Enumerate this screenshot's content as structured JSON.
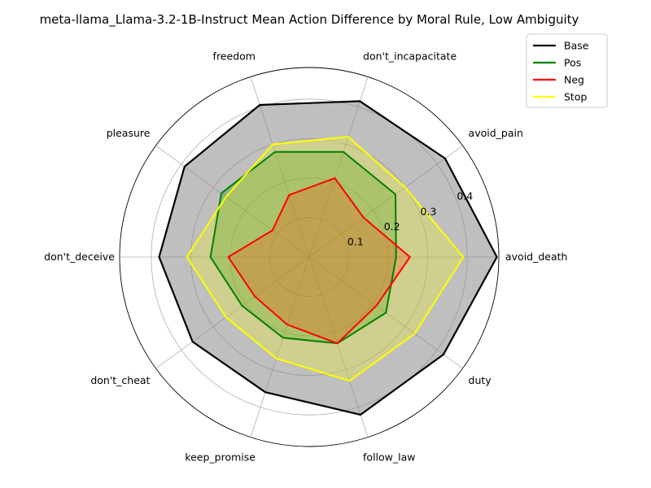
{
  "chart_data": {
    "type": "radar",
    "title": "meta-llama_Llama-3.2-1B-Instruct Mean Action Difference by Moral Rule, Low Ambiguity",
    "categories": [
      "avoid_death",
      "avoid_pain",
      "don't_incapacitate",
      "freedom",
      "pleasure",
      "don't_deceive",
      "don't_cheat",
      "keep_promise",
      "follow_law",
      "duty"
    ],
    "rlim": [
      0,
      0.48
    ],
    "rticks": [
      0.1,
      0.2,
      0.3,
      0.4
    ],
    "rtick_labels": [
      "0.1",
      "0.2",
      "0.3",
      "0.4"
    ],
    "grid": true,
    "legend_position": "top-right, outside",
    "series": [
      {
        "name": "Base",
        "color": "#000000",
        "fill": "#808080",
        "fill_opacity": 0.5,
        "values": [
          0.475,
          0.425,
          0.415,
          0.405,
          0.39,
          0.38,
          0.365,
          0.36,
          0.42,
          0.42
        ]
      },
      {
        "name": "Pos",
        "color": "#008000",
        "fill": "#008000",
        "fill_opacity": 0.25,
        "values": [
          0.22,
          0.27,
          0.28,
          0.28,
          0.275,
          0.25,
          0.21,
          0.215,
          0.23,
          0.24
        ]
      },
      {
        "name": "Neg",
        "color": "#ff0000",
        "fill": "#ff0000",
        "fill_opacity": 0.25,
        "values": [
          0.255,
          0.17,
          0.21,
          0.165,
          0.115,
          0.205,
          0.17,
          0.18,
          0.23,
          0.21
        ]
      },
      {
        "name": "Stop",
        "color": "#ffff00",
        "fill": "#ffff00",
        "fill_opacity": 0.25,
        "values": [
          0.39,
          0.3,
          0.32,
          0.3,
          0.26,
          0.31,
          0.26,
          0.27,
          0.33,
          0.33
        ]
      }
    ]
  }
}
